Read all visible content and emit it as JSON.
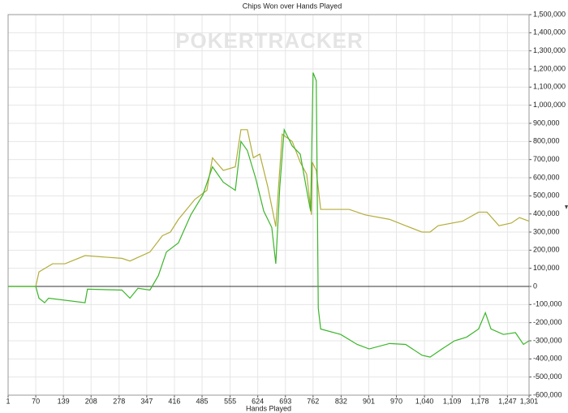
{
  "chart_data": {
    "type": "line",
    "title": "Chips Won over Hands Played",
    "watermark": "POKERTRACKER",
    "xlabel": "Hands Played",
    "xlim": [
      1,
      1301
    ],
    "xticks": [
      1,
      70,
      139,
      208,
      278,
      347,
      416,
      485,
      555,
      624,
      693,
      762,
      832,
      901,
      970,
      {
        "value": 1040,
        "label": "1,040"
      },
      {
        "value": 1109,
        "label": "1,109"
      },
      {
        "value": 1178,
        "label": "1,178"
      },
      {
        "value": 1247,
        "label": "1,247"
      },
      {
        "value": 1301,
        "label": "1,301"
      }
    ],
    "ylim": [
      -600000,
      1500000
    ],
    "yticks": [
      {
        "value": -600000,
        "label": "-600,000"
      },
      {
        "value": -500000,
        "label": "-500,000"
      },
      {
        "value": -400000,
        "label": "-400,000"
      },
      {
        "value": -300000,
        "label": "-300,000"
      },
      {
        "value": -200000,
        "label": "-200,000"
      },
      {
        "value": -100000,
        "label": "-100,000"
      },
      0,
      {
        "value": 100000,
        "label": "100,000"
      },
      {
        "value": 200000,
        "label": "200,000"
      },
      {
        "value": 300000,
        "label": "300,000"
      },
      {
        "value": 400000,
        "label": "400,000"
      },
      {
        "value": 500000,
        "label": "500,000"
      },
      {
        "value": 600000,
        "label": "600,000"
      },
      {
        "value": 700000,
        "label": "700,000"
      },
      {
        "value": 800000,
        "label": "800,000"
      },
      {
        "value": 900000,
        "label": "900,000"
      },
      {
        "value": 1000000,
        "label": "1,000,000"
      },
      {
        "value": 1100000,
        "label": "1,100,000"
      },
      {
        "value": 1200000,
        "label": "1,200,000"
      },
      {
        "value": 1300000,
        "label": "1,300,000"
      },
      {
        "value": 1400000,
        "label": "1,400,000"
      },
      {
        "value": 1500000,
        "label": "1,500,000"
      }
    ],
    "grid": true,
    "series": [
      {
        "color": "#b3ad3a",
        "x": [
          1,
          70,
          78,
          112,
          143,
          193,
          285,
          305,
          355,
          386,
          406,
          426,
          467,
          497,
          511,
          538,
          568,
          582,
          598,
          613,
          629,
          649,
          669,
          685,
          710,
          730,
          746,
          758,
          760,
          770,
          781,
          852,
          892,
          953,
          993,
          1034,
          1054,
          1074,
          1135,
          1175,
          1196,
          1226,
          1257,
          1277,
          1301
        ],
        "values": [
          0,
          0,
          80000,
          125000,
          125000,
          170000,
          155000,
          140000,
          190000,
          280000,
          300000,
          370000,
          480000,
          530000,
          710000,
          640000,
          660000,
          865000,
          865000,
          710000,
          730000,
          550000,
          330000,
          840000,
          800000,
          685000,
          620000,
          395000,
          685000,
          640000,
          425000,
          425000,
          395000,
          370000,
          335000,
          300000,
          300000,
          335000,
          360000,
          410000,
          410000,
          335000,
          350000,
          380000,
          360000
        ]
      },
      {
        "color": "#3bb52a",
        "x": [
          1,
          70,
          78,
          92,
          102,
          193,
          199,
          285,
          305,
          325,
          355,
          376,
          396,
          426,
          457,
          487,
          511,
          538,
          568,
          582,
          598,
          619,
          639,
          659,
          669,
          679,
          690,
          710,
          730,
          750,
          756,
          762,
          770,
          775,
          781,
          831,
          872,
          902,
          953,
          993,
          1034,
          1054,
          1084,
          1115,
          1145,
          1175,
          1192,
          1206,
          1237,
          1267,
          1287,
          1301
        ],
        "values": [
          0,
          0,
          -65000,
          -90000,
          -65000,
          -90000,
          -15000,
          -20000,
          -65000,
          -10000,
          -20000,
          60000,
          190000,
          240000,
          395000,
          505000,
          660000,
          575000,
          530000,
          800000,
          750000,
          595000,
          415000,
          325000,
          125000,
          550000,
          865000,
          775000,
          730000,
          485000,
          415000,
          1180000,
          1135000,
          -120000,
          -235000,
          -265000,
          -320000,
          -345000,
          -315000,
          -320000,
          -380000,
          -390000,
          -345000,
          -300000,
          -280000,
          -235000,
          -145000,
          -235000,
          -265000,
          -255000,
          -320000,
          -300000
        ]
      }
    ]
  }
}
